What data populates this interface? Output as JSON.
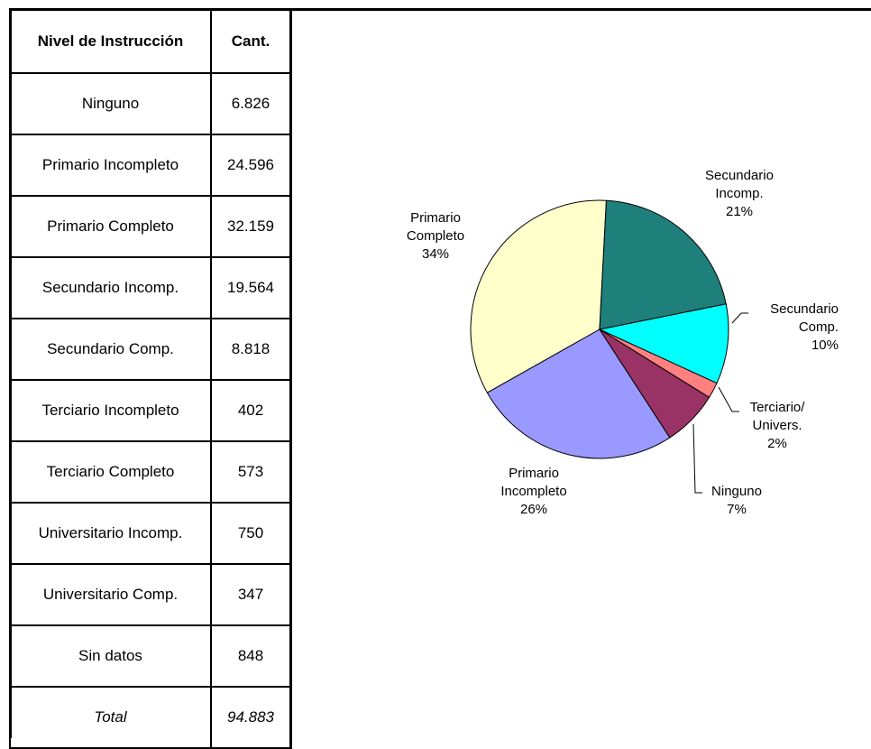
{
  "table": {
    "header": [
      "Nivel de Instrucción",
      "Cant."
    ],
    "rows": [
      [
        "Ninguno",
        "6.826"
      ],
      [
        "Primario Incompleto",
        "24.596"
      ],
      [
        "Primario Completo",
        "32.159"
      ],
      [
        "Secundario Incomp.",
        "19.564"
      ],
      [
        "Secundario Comp.",
        "8.818"
      ],
      [
        "Terciario Incompleto",
        "402"
      ],
      [
        "Terciario Completo",
        "573"
      ],
      [
        "Universitario Incomp.",
        "750"
      ],
      [
        "Universitario Comp.",
        "347"
      ],
      [
        "Sin datos",
        "848"
      ]
    ],
    "total": [
      "Total",
      "94.883"
    ]
  },
  "chart_data": {
    "type": "pie",
    "categories": [
      "Secundario Incomp.",
      "Secundario Comp.",
      "Terciario/ Univers.",
      "Ninguno",
      "Primario Incompleto",
      "Primario Completo"
    ],
    "values": [
      21,
      10,
      2,
      7,
      26,
      34
    ],
    "value_labels": [
      "21%",
      "10%",
      "2%",
      "7%",
      "26%",
      "34%"
    ],
    "colors": [
      "#1f7f7a",
      "#00ffff",
      "#ff8080",
      "#993366",
      "#9999ff",
      "#ffffcc"
    ]
  }
}
